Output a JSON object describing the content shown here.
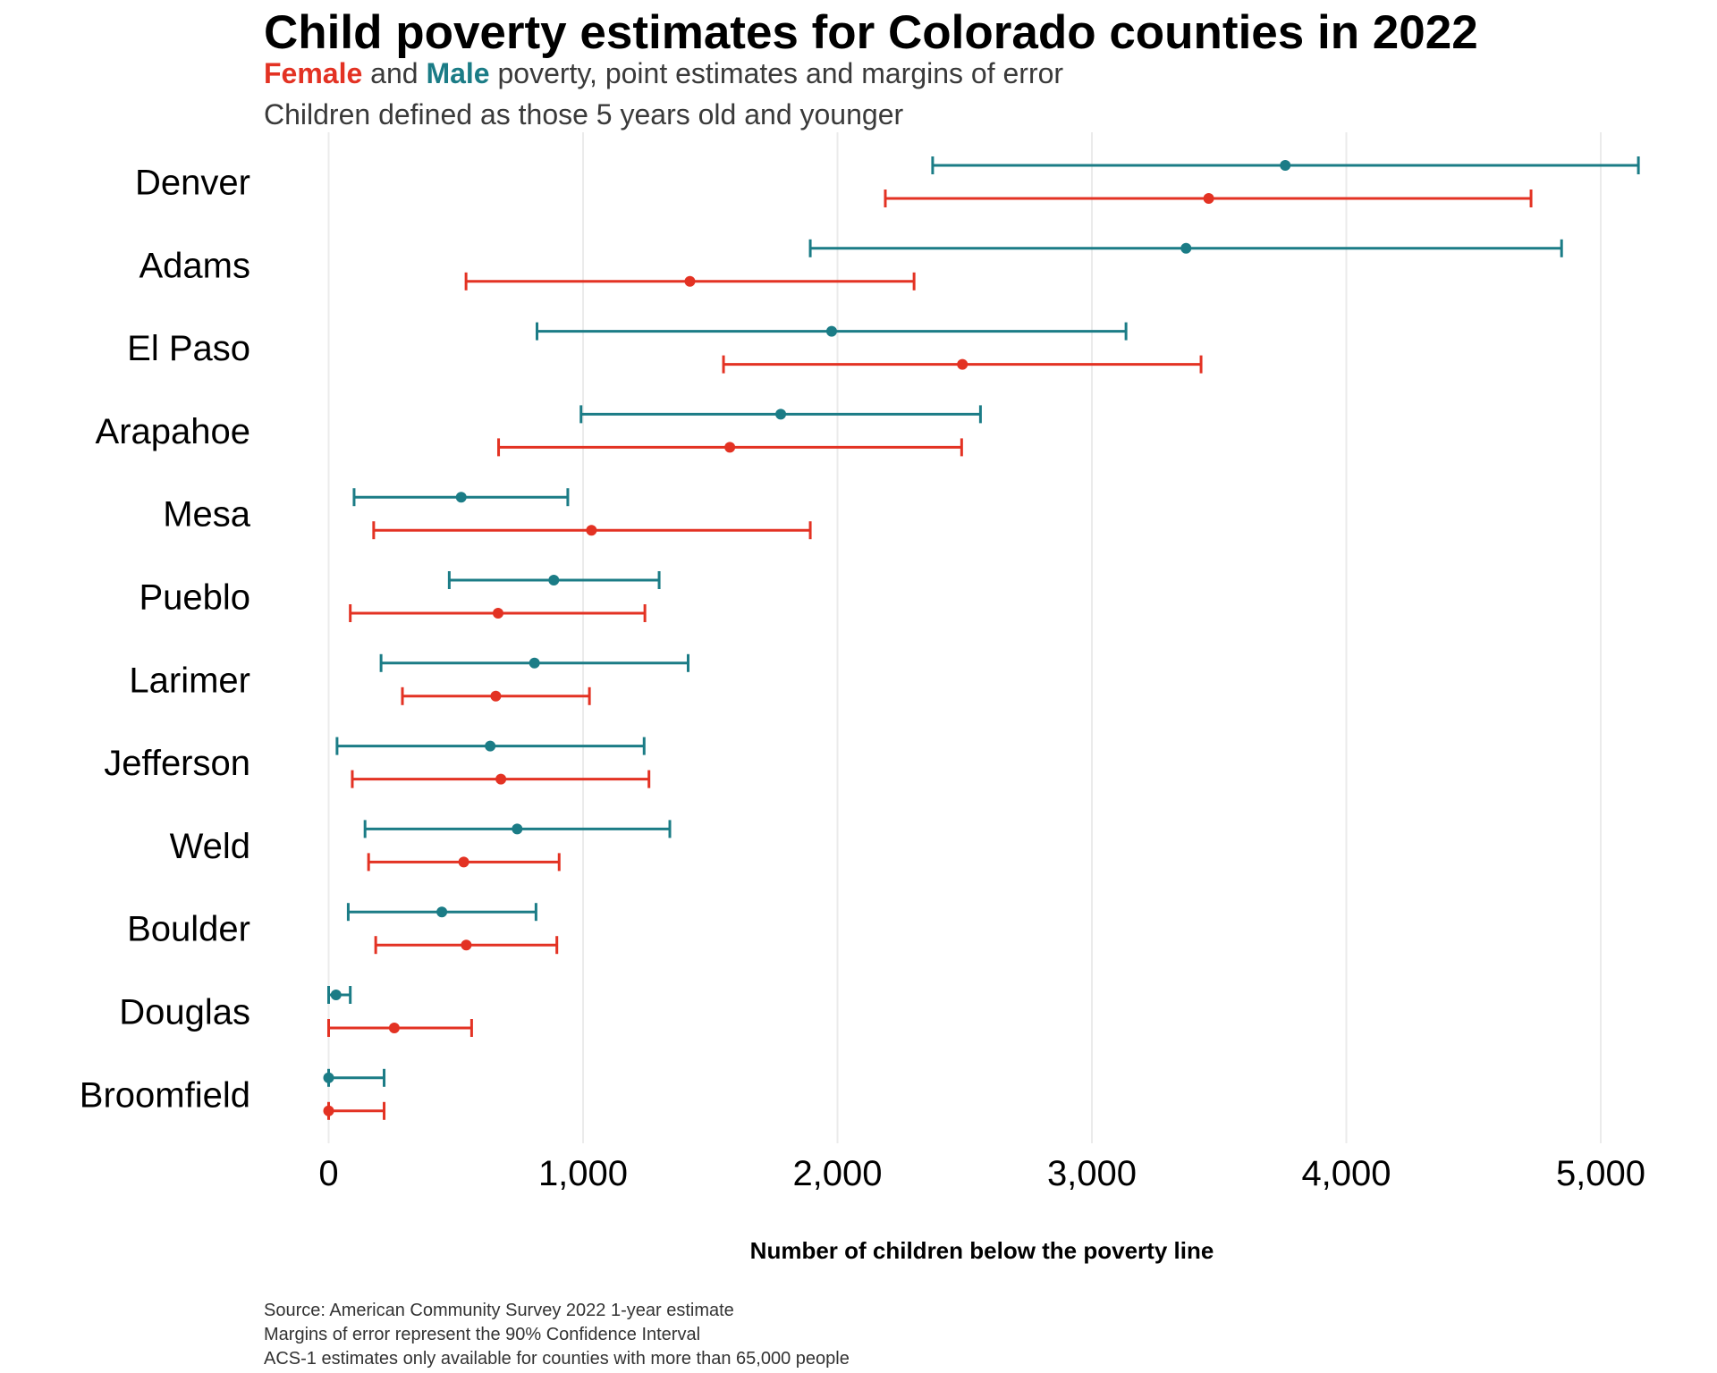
{
  "header": {
    "title": "Child poverty estimates for Colorado counties in 2022",
    "subtitle_female": "Female",
    "subtitle_and": " and ",
    "subtitle_male": "Male",
    "subtitle_rest": " poverty, point estimates and margins of error",
    "subtitle2": "Children defined as those 5 years old and younger"
  },
  "caption": {
    "lines": [
      "Source: American Community Survey 2022 1-year estimate",
      "Margins of error represent the 90% Confidence Interval",
      "ACS-1 estimates only available for counties with more than 65,000 people"
    ]
  },
  "colors": {
    "female": "#e33223",
    "male": "#1b7c86",
    "grid": "#ebebeb"
  },
  "chart_data": {
    "type": "errorbar",
    "title": "Child poverty estimates for Colorado counties in 2022",
    "subtitle": "Female and Male poverty, point estimates and margins of error",
    "xlabel": "Number of children below the poverty line",
    "ylabel": "",
    "xlim": [
      0,
      5150
    ],
    "xticks": [
      0,
      1000,
      2000,
      3000,
      4000,
      5000
    ],
    "xtick_labels": [
      "0",
      "1,000",
      "2,000",
      "3,000",
      "4,000",
      "5,000"
    ],
    "grid": "vertical major",
    "legend": "in subtitle (colored words)",
    "categories": [
      "Denver",
      "Adams",
      "El Paso",
      "Arapahoe",
      "Mesa",
      "Pueblo",
      "Larimer",
      "Jefferson",
      "Weld",
      "Boulder",
      "Douglas",
      "Broomfield"
    ],
    "series": [
      {
        "name": "Male",
        "estimate": [
          3760,
          3370,
          1977,
          1777,
          521,
          885,
          809,
          635,
          741,
          445,
          29,
          0
        ],
        "low": [
          2374,
          1893,
          819,
          992,
          100,
          474,
          206,
          33,
          143,
          77,
          0,
          0
        ],
        "high": [
          5148,
          4846,
          3134,
          2562,
          940,
          1299,
          1413,
          1240,
          1341,
          815,
          85,
          218
        ]
      },
      {
        "name": "Female",
        "estimate": [
          3459,
          1420,
          2491,
          1577,
          1033,
          666,
          657,
          677,
          531,
          541,
          258,
          0
        ],
        "low": [
          2188,
          540,
          1552,
          668,
          177,
          85,
          290,
          93,
          157,
          185,
          0,
          0
        ],
        "high": [
          4726,
          2301,
          3429,
          2488,
          1893,
          1243,
          1025,
          1259,
          906,
          897,
          562,
          218
        ]
      }
    ]
  }
}
